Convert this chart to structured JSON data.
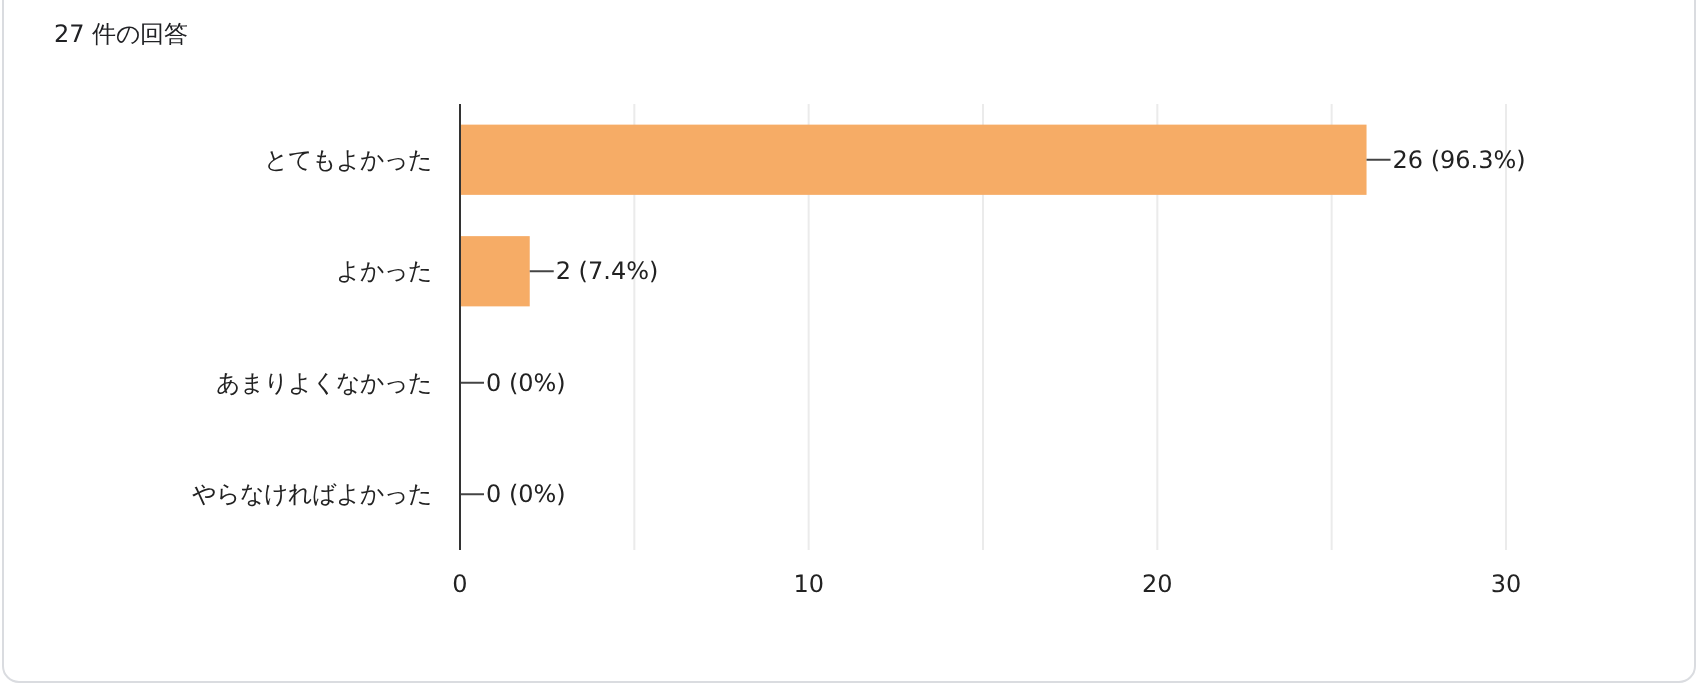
{
  "chart_data": {
    "type": "bar",
    "orientation": "horizontal",
    "title": "27 件の回答",
    "categories": [
      "とてもよかった",
      "よかった",
      "あまりよくなかった",
      "やらなければよかった"
    ],
    "values": [
      26,
      2,
      0,
      0
    ],
    "value_labels": [
      "26 (96.3%)",
      "2 (7.4%)",
      "0 (0%)",
      "0 (0%)"
    ],
    "color": "#f6ac66",
    "xlim": [
      0,
      30
    ],
    "xticks": [
      0,
      {
        "value": 5,
        "label": null
      },
      10,
      {
        "value": 15,
        "label": null
      },
      20,
      {
        "value": 25,
        "label": null
      },
      30
    ],
    "grid": "x"
  }
}
